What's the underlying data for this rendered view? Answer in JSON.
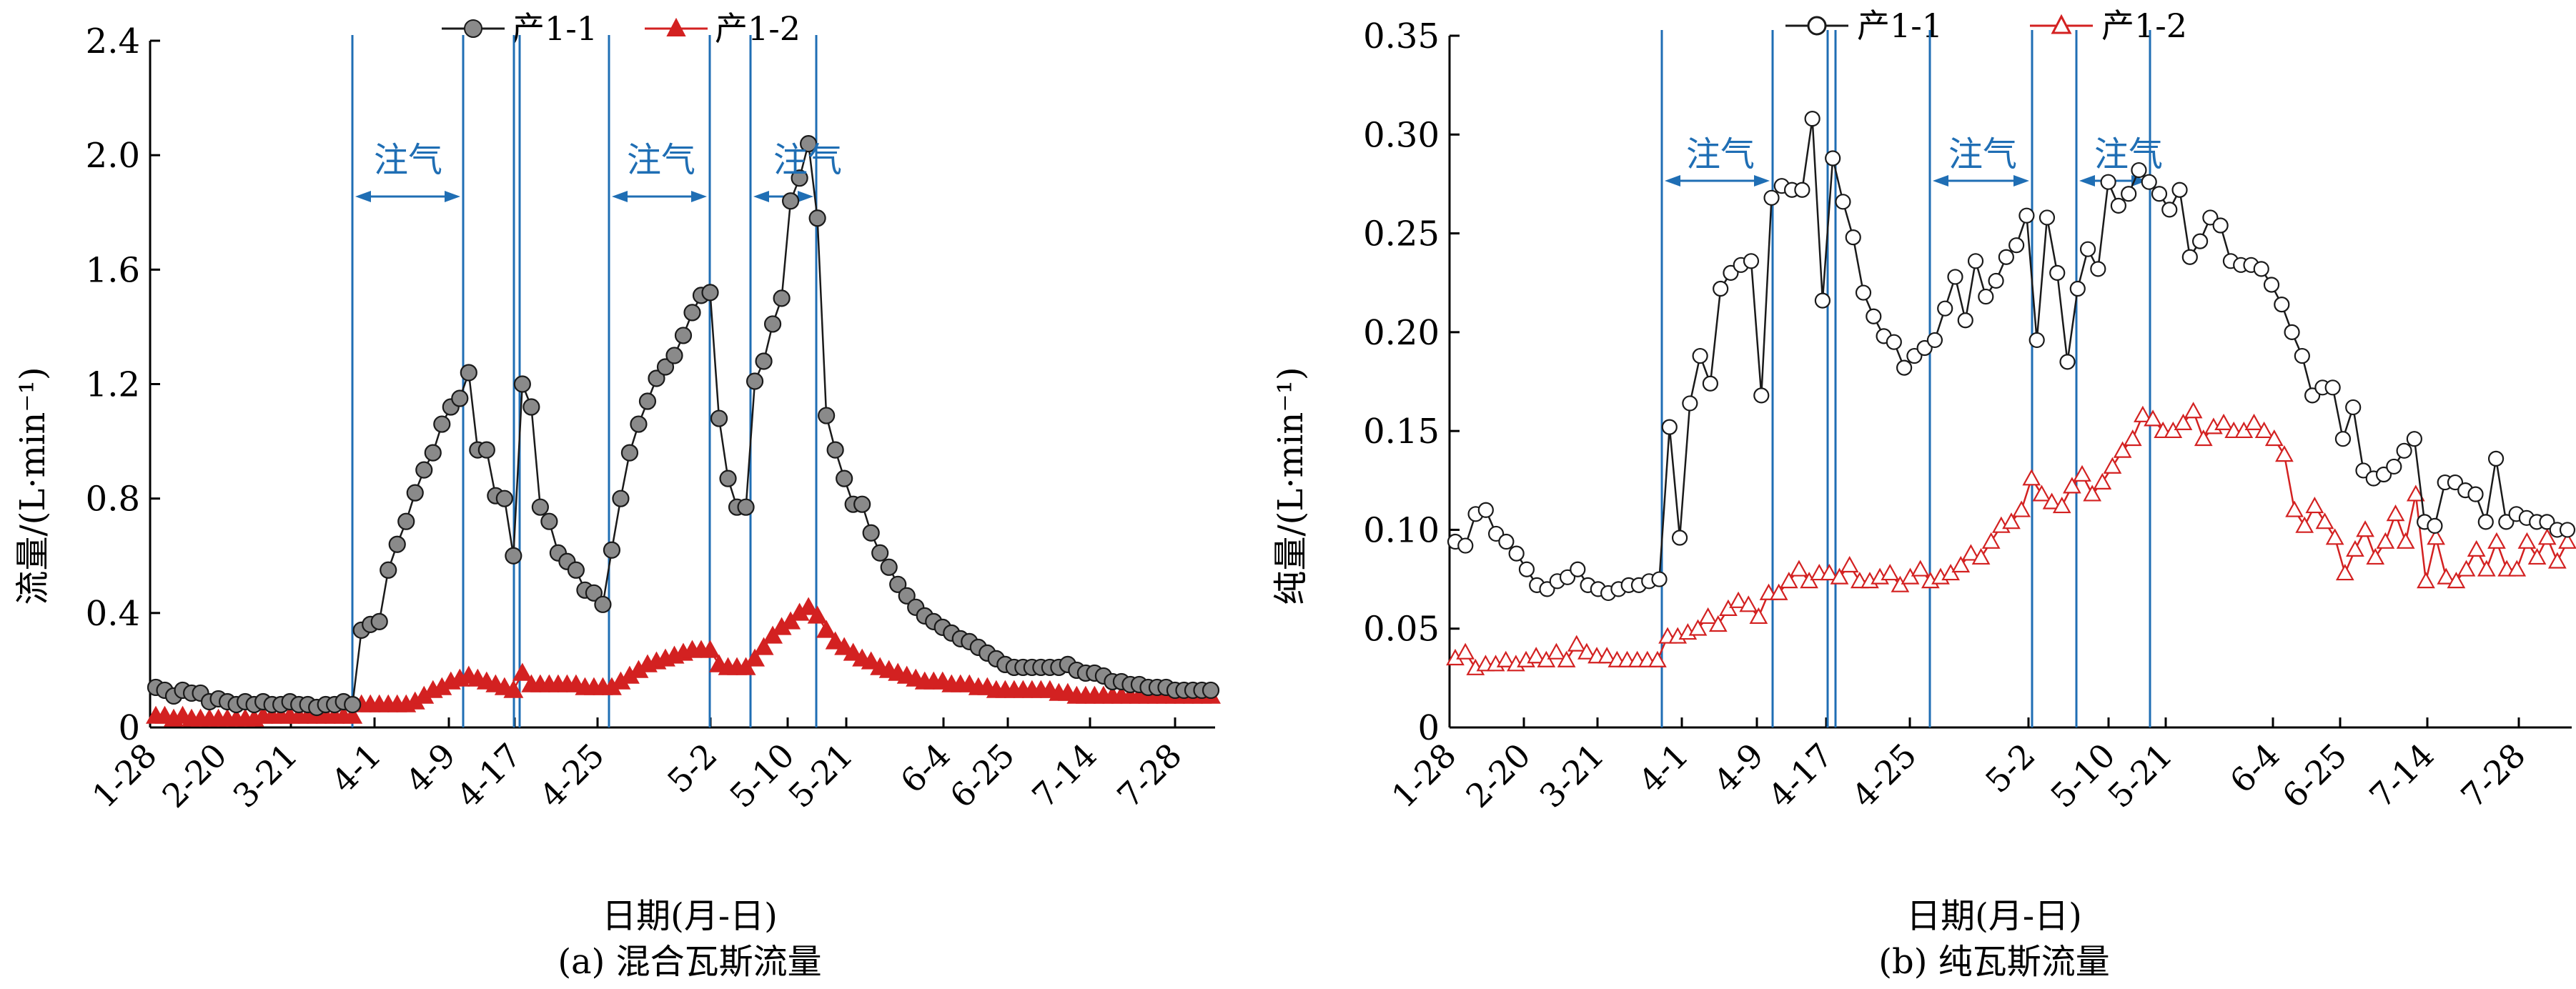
{
  "chart_data": [
    {
      "type": "line",
      "caption": "(a) 混合瓦斯流量",
      "xlabel": "日期(月-日)",
      "ylabel": "流量/(L·min⁻¹)",
      "ylim": [
        0,
        2.4
      ],
      "yticks": [
        "0",
        "0.4",
        "0.8",
        "1.2",
        "1.6",
        "2.0",
        "2.4"
      ],
      "xtick_labels": [
        "1-28",
        "2-20",
        "3-21",
        "4-1",
        "4-9",
        "4-17",
        "4-25",
        "5-2",
        "5-10",
        "5-21",
        "6-4",
        "6-25",
        "7-14",
        "7-28"
      ],
      "legend": "top-center",
      "injection_label": "注气",
      "series": [
        {
          "name": "产1-1",
          "marker": "filled-circle",
          "color": "#1a1a1a",
          "marker_fill": "#8a8a8a",
          "values": [
            0.14,
            0.13,
            0.11,
            0.13,
            0.12,
            0.12,
            0.09,
            0.1,
            0.09,
            0.08,
            0.09,
            0.08,
            0.09,
            0.08,
            0.08,
            0.09,
            0.08,
            0.08,
            0.07,
            0.08,
            0.08,
            0.09,
            0.08,
            0.34,
            0.36,
            0.37,
            0.55,
            0.64,
            0.72,
            0.82,
            0.9,
            0.96,
            1.06,
            1.12,
            1.15,
            1.24,
            0.97,
            0.97,
            0.81,
            0.8,
            0.6,
            1.2,
            1.12,
            0.77,
            0.72,
            0.61,
            0.58,
            0.55,
            0.48,
            0.47,
            0.43,
            0.62,
            0.8,
            0.96,
            1.06,
            1.14,
            1.22,
            1.26,
            1.3,
            1.37,
            1.45,
            1.51,
            1.52,
            1.08,
            0.87,
            0.77,
            0.77,
            1.21,
            1.28,
            1.41,
            1.5,
            1.84,
            1.92,
            2.04,
            1.78,
            1.09,
            0.97,
            0.87,
            0.78,
            0.78,
            0.68,
            0.61,
            0.56,
            0.5,
            0.46,
            0.42,
            0.39,
            0.37,
            0.35,
            0.33,
            0.31,
            0.3,
            0.28,
            0.26,
            0.24,
            0.22,
            0.21,
            0.21,
            0.21,
            0.21,
            0.21,
            0.21,
            0.22,
            0.2,
            0.19,
            0.19,
            0.18,
            0.16,
            0.16,
            0.15,
            0.15,
            0.14,
            0.14,
            0.14,
            0.13,
            0.13,
            0.13,
            0.13,
            0.13
          ]
        },
        {
          "name": "产1-2",
          "marker": "filled-triangle",
          "color": "#d32121",
          "marker_fill": "#d32121",
          "values": [
            0.04,
            0.04,
            0.03,
            0.04,
            0.03,
            0.03,
            0.03,
            0.03,
            0.03,
            0.03,
            0.03,
            0.03,
            0.04,
            0.04,
            0.04,
            0.04,
            0.04,
            0.04,
            0.04,
            0.04,
            0.04,
            0.04,
            0.04,
            0.08,
            0.08,
            0.08,
            0.08,
            0.08,
            0.08,
            0.09,
            0.11,
            0.13,
            0.14,
            0.16,
            0.17,
            0.18,
            0.17,
            0.16,
            0.15,
            0.14,
            0.13,
            0.19,
            0.15,
            0.15,
            0.15,
            0.15,
            0.15,
            0.15,
            0.14,
            0.14,
            0.14,
            0.14,
            0.16,
            0.18,
            0.2,
            0.22,
            0.23,
            0.24,
            0.25,
            0.26,
            0.27,
            0.27,
            0.27,
            0.22,
            0.21,
            0.21,
            0.21,
            0.24,
            0.28,
            0.32,
            0.35,
            0.37,
            0.4,
            0.42,
            0.39,
            0.34,
            0.3,
            0.28,
            0.26,
            0.24,
            0.23,
            0.21,
            0.2,
            0.19,
            0.18,
            0.17,
            0.16,
            0.16,
            0.16,
            0.15,
            0.15,
            0.15,
            0.14,
            0.14,
            0.13,
            0.13,
            0.13,
            0.13,
            0.13,
            0.13,
            0.13,
            0.12,
            0.12,
            0.11,
            0.11,
            0.11,
            0.11,
            0.11,
            0.11,
            0.11,
            0.11,
            0.11,
            0.11,
            0.11,
            0.11,
            0.11,
            0.11,
            0.11,
            0.11
          ]
        }
      ]
    },
    {
      "type": "line",
      "caption": "(b) 纯瓦斯流量",
      "xlabel": "日期(月-日)",
      "ylabel": "纯量/(L·min⁻¹)",
      "ylim": [
        0,
        0.35
      ],
      "yticks": [
        "0",
        "0.05",
        "0.10",
        "0.15",
        "0.20",
        "0.25",
        "0.30",
        "0.35"
      ],
      "xtick_labels": [
        "1-28",
        "2-20",
        "3-21",
        "4-1",
        "4-9",
        "4-17",
        "4-25",
        "5-2",
        "5-10",
        "5-21",
        "6-4",
        "6-25",
        "7-14",
        "7-28"
      ],
      "legend": "top-center",
      "injection_label": "注气",
      "series": [
        {
          "name": "产1-1",
          "marker": "open-circle",
          "color": "#1a1a1a",
          "marker_fill": "#ffffff",
          "values": [
            0.094,
            0.092,
            0.108,
            0.11,
            0.098,
            0.094,
            0.088,
            0.08,
            0.072,
            0.07,
            0.074,
            0.076,
            0.08,
            0.072,
            0.07,
            0.068,
            0.07,
            0.072,
            0.072,
            0.074,
            0.075,
            0.152,
            0.096,
            0.164,
            0.188,
            0.174,
            0.222,
            0.23,
            0.234,
            0.236,
            0.168,
            0.268,
            0.274,
            0.272,
            0.272,
            0.308,
            0.216,
            0.288,
            0.266,
            0.248,
            0.22,
            0.208,
            0.198,
            0.195,
            0.182,
            0.188,
            0.192,
            0.196,
            0.212,
            0.228,
            0.206,
            0.236,
            0.218,
            0.226,
            0.238,
            0.244,
            0.259,
            0.196,
            0.258,
            0.23,
            0.185,
            0.222,
            0.242,
            0.232,
            0.276,
            0.264,
            0.27,
            0.282,
            0.276,
            0.27,
            0.262,
            0.272,
            0.238,
            0.246,
            0.258,
            0.254,
            0.236,
            0.234,
            0.234,
            0.232,
            0.224,
            0.214,
            0.2,
            0.188,
            0.168,
            0.172,
            0.172,
            0.146,
            0.162,
            0.13,
            0.126,
            0.128,
            0.132,
            0.14,
            0.146,
            0.104,
            0.102,
            0.124,
            0.124,
            0.12,
            0.118,
            0.104,
            0.136,
            0.104,
            0.108,
            0.106,
            0.104,
            0.104,
            0.1,
            0.1
          ]
        },
        {
          "name": "产1-2",
          "marker": "open-triangle",
          "color": "#d32121",
          "marker_fill": "#ffffff",
          "values": [
            0.035,
            0.038,
            0.03,
            0.032,
            0.032,
            0.034,
            0.032,
            0.034,
            0.036,
            0.034,
            0.038,
            0.034,
            0.042,
            0.038,
            0.036,
            0.036,
            0.034,
            0.034,
            0.034,
            0.034,
            0.034,
            0.046,
            0.046,
            0.048,
            0.05,
            0.056,
            0.052,
            0.06,
            0.064,
            0.062,
            0.056,
            0.068,
            0.068,
            0.074,
            0.08,
            0.074,
            0.078,
            0.078,
            0.076,
            0.082,
            0.074,
            0.074,
            0.076,
            0.078,
            0.072,
            0.076,
            0.08,
            0.074,
            0.076,
            0.078,
            0.082,
            0.088,
            0.086,
            0.094,
            0.102,
            0.104,
            0.11,
            0.126,
            0.118,
            0.114,
            0.112,
            0.122,
            0.128,
            0.118,
            0.124,
            0.132,
            0.14,
            0.146,
            0.158,
            0.156,
            0.15,
            0.15,
            0.154,
            0.16,
            0.146,
            0.152,
            0.154,
            0.15,
            0.15,
            0.154,
            0.15,
            0.146,
            0.138,
            0.11,
            0.102,
            0.112,
            0.104,
            0.096,
            0.078,
            0.09,
            0.1,
            0.086,
            0.094,
            0.108,
            0.094,
            0.118,
            0.074,
            0.096,
            0.076,
            0.074,
            0.08,
            0.09,
            0.08,
            0.094,
            0.08,
            0.08,
            0.094,
            0.086,
            0.096,
            0.084,
            0.094
          ]
        }
      ]
    }
  ]
}
